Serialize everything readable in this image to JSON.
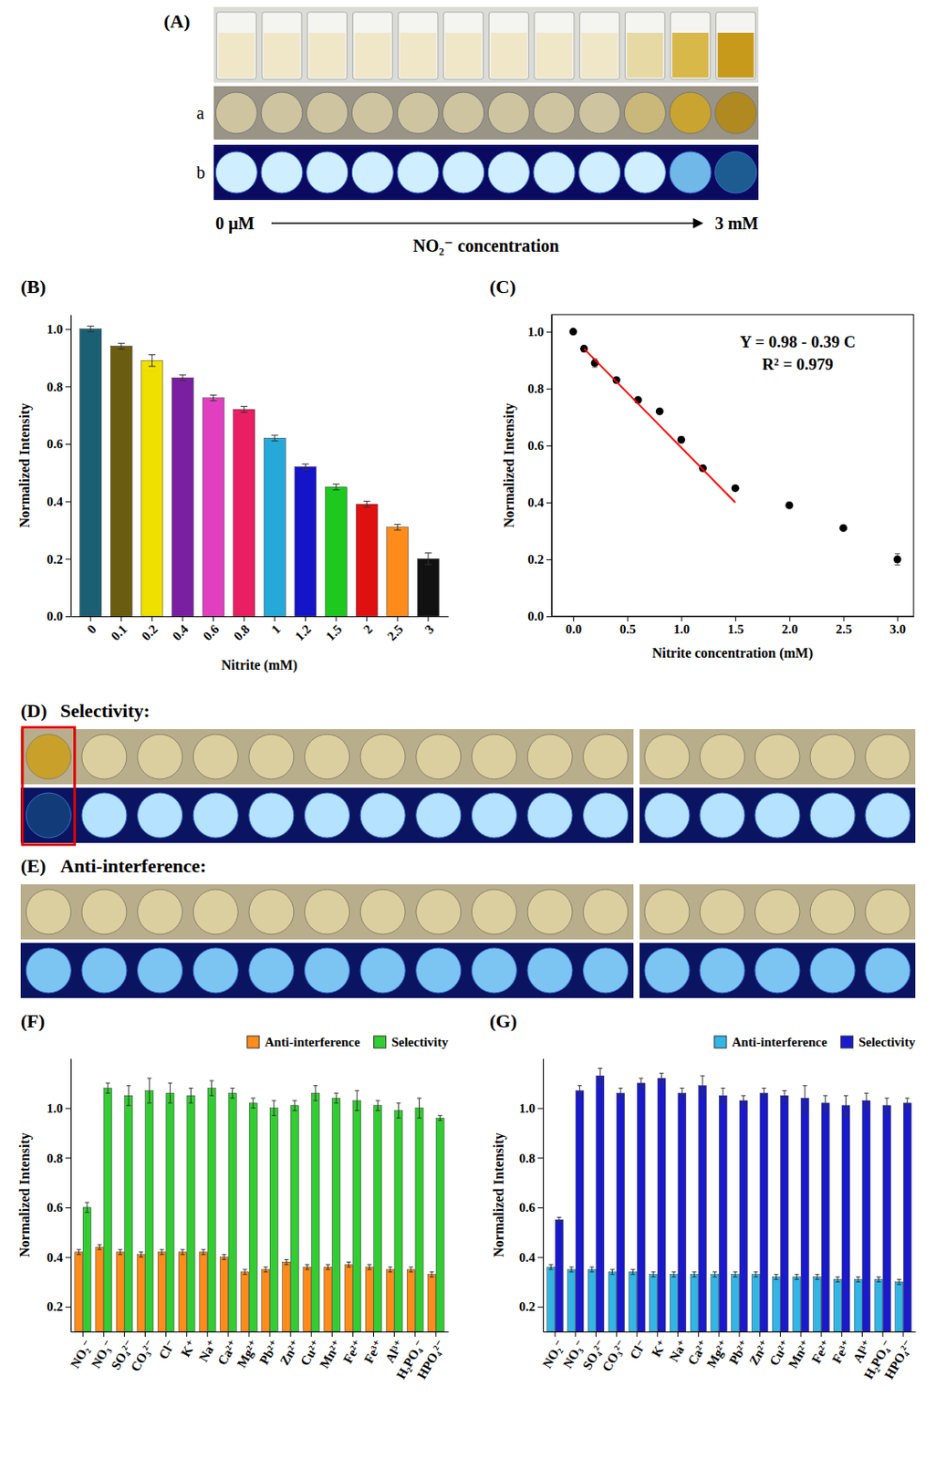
{
  "figure": {
    "panel_a": {
      "label": "(A)",
      "rows": [
        "a",
        "b"
      ],
      "x_start": "0 μM",
      "x_end": "3 mM",
      "x_title": "NO₂⁻ concentration"
    },
    "panel_d": {
      "label": "(D)",
      "title": "Selectivity:"
    },
    "panel_e": {
      "label": "(E)",
      "title": "Anti-interference:"
    }
  },
  "chart_data": [
    {
      "type": "bar",
      "title": "(B)",
      "x_label": "Nitrite (mM)",
      "y_label": "Normalized Intensity",
      "categories": [
        "0",
        "0.1",
        "0.2",
        "0.4",
        "0.6",
        "0.8",
        "1",
        "1.2",
        "1.5",
        "2",
        "2.5",
        "3"
      ],
      "values": [
        1.0,
        0.94,
        0.89,
        0.83,
        0.76,
        0.72,
        0.62,
        0.52,
        0.45,
        0.39,
        0.31,
        0.2
      ],
      "errors": [
        0.01,
        0.01,
        0.02,
        0.01,
        0.01,
        0.01,
        0.01,
        0.01,
        0.01,
        0.01,
        0.01,
        0.02
      ],
      "colors": [
        "#1a5f73",
        "#6b5d10",
        "#f0e000",
        "#7b1fa2",
        "#e040c0",
        "#e91e63",
        "#26a9d9",
        "#1414c8",
        "#1ec81e",
        "#e01010",
        "#ff8c1a",
        "#111111"
      ],
      "ylim": [
        0,
        1.05
      ],
      "yticks": [
        {
          "value": 0,
          "label": "0.0"
        },
        0.2,
        0.4,
        0.6,
        0.8,
        {
          "value": 1,
          "label": "1.0"
        }
      ]
    },
    {
      "type": "scatter",
      "title": "(C)",
      "x_label": "Nitrite concentration (mM)",
      "y_label": "Normalized Intensity",
      "x": [
        0,
        0.1,
        0.2,
        0.4,
        0.6,
        0.8,
        1.0,
        1.2,
        1.5,
        2.0,
        2.5,
        3.0
      ],
      "series": [
        {
          "type": "scatter",
          "color": "#000000",
          "marker": "circle",
          "values": [
            1.0,
            0.94,
            0.89,
            0.83,
            0.76,
            0.72,
            0.62,
            0.52,
            0.45,
            0.39,
            0.31,
            0.2
          ],
          "errors": [
            0.005,
            0.01,
            0.015,
            0.005,
            0.005,
            0.005,
            0.01,
            0.005,
            0.005,
            0.005,
            0.005,
            0.02
          ]
        },
        {
          "type": "line",
          "color": "#ff0000",
          "line_style": "solid",
          "x": [
            0.1,
            1.5
          ],
          "values": [
            0.94,
            0.4
          ]
        }
      ],
      "annotations": [
        "Y = 0.98 - 0.39 C",
        "R² = 0.979"
      ],
      "xlim": [
        -0.2,
        3.15
      ],
      "xticks": [
        {
          "value": 0,
          "label": "0.0"
        },
        0.5,
        {
          "value": 1,
          "label": "1.0"
        },
        1.5,
        {
          "value": 2,
          "label": "2.0"
        },
        2.5,
        {
          "value": 3,
          "label": "3.0"
        }
      ],
      "ylim": [
        0,
        1.06
      ],
      "yticks": [
        {
          "value": 0,
          "label": "0.0"
        },
        0.2,
        0.4,
        0.6,
        0.8,
        {
          "value": 1,
          "label": "1.0"
        }
      ]
    },
    {
      "type": "bar",
      "title": "(F)",
      "y_label": "Normalized Intensity",
      "legend": "top",
      "categories": [
        "NO₂⁻",
        "NO₃⁻",
        "SO₄²⁻",
        "CO₃²⁻",
        "Cl⁻",
        "K⁺",
        "Na⁺",
        "Ca²⁺",
        "Mg²⁺",
        "Pb²⁺",
        "Zn²⁺",
        "Cu²⁺",
        "Mn²⁺",
        "Fe²⁺",
        "Fe³⁺",
        "Al³⁺",
        "H₂PO₄⁻",
        "HPO₄²⁻"
      ],
      "series": [
        {
          "name": "Anti-interference",
          "color": "#ff8c1a",
          "values": [
            0.42,
            0.44,
            0.42,
            0.41,
            0.42,
            0.42,
            0.42,
            0.4,
            0.34,
            0.35,
            0.38,
            0.36,
            0.36,
            0.37,
            0.36,
            0.35,
            0.35,
            0.33
          ],
          "errors": [
            0.01,
            0.01,
            0.01,
            0.01,
            0.01,
            0.01,
            0.01,
            0.01,
            0.01,
            0.01,
            0.01,
            0.01,
            0.01,
            0.01,
            0.01,
            0.01,
            0.01,
            0.01
          ]
        },
        {
          "name": "Selectivity",
          "color": "#33cc33",
          "values": [
            0.6,
            1.08,
            1.05,
            1.07,
            1.06,
            1.05,
            1.08,
            1.06,
            1.02,
            1.0,
            1.01,
            1.06,
            1.04,
            1.03,
            1.01,
            0.99,
            1.0,
            0.96
          ],
          "errors": [
            0.02,
            0.02,
            0.04,
            0.05,
            0.04,
            0.03,
            0.03,
            0.02,
            0.02,
            0.03,
            0.02,
            0.03,
            0.02,
            0.04,
            0.02,
            0.03,
            0.04,
            0.01
          ]
        }
      ],
      "ylim": [
        0.1,
        1.2
      ],
      "yticks": [
        0.2,
        0.4,
        0.6,
        0.8,
        {
          "value": 1,
          "label": "1.0"
        }
      ]
    },
    {
      "type": "bar",
      "title": "(G)",
      "y_label": "Normalized Intensity",
      "legend": "top",
      "categories": [
        "NO₂⁻",
        "NO₃⁻",
        "SO₄²⁻",
        "CO₃²⁻",
        "Cl⁻",
        "K⁺",
        "Na⁺",
        "Ca²⁺",
        "Mg²⁺",
        "Pb²⁺",
        "Zn²⁺",
        "Cu²⁺",
        "Mn²⁺",
        "Fe²⁺",
        "Fe³⁺",
        "Al³⁺",
        "H₂PO₄⁻",
        "HPO₄²⁻"
      ],
      "series": [
        {
          "name": "Anti-interference",
          "color": "#33b5e5",
          "values": [
            0.36,
            0.35,
            0.35,
            0.34,
            0.34,
            0.33,
            0.33,
            0.33,
            0.33,
            0.33,
            0.33,
            0.32,
            0.32,
            0.32,
            0.31,
            0.31,
            0.31,
            0.3
          ],
          "errors": [
            0.01,
            0.01,
            0.01,
            0.01,
            0.01,
            0.01,
            0.01,
            0.01,
            0.01,
            0.01,
            0.01,
            0.01,
            0.01,
            0.01,
            0.01,
            0.01,
            0.01,
            0.01
          ]
        },
        {
          "name": "Selectivity",
          "color": "#1a1acc",
          "values": [
            0.55,
            1.07,
            1.13,
            1.06,
            1.1,
            1.12,
            1.06,
            1.09,
            1.05,
            1.03,
            1.06,
            1.05,
            1.04,
            1.02,
            1.01,
            1.03,
            1.01,
            1.02
          ],
          "errors": [
            0.01,
            0.02,
            0.03,
            0.02,
            0.02,
            0.02,
            0.02,
            0.04,
            0.03,
            0.02,
            0.02,
            0.02,
            0.05,
            0.03,
            0.04,
            0.03,
            0.03,
            0.02
          ]
        }
      ],
      "ylim": [
        0.1,
        1.2
      ],
      "yticks": [
        0.2,
        0.4,
        0.6,
        0.8,
        {
          "value": 1,
          "label": "1.0"
        }
      ]
    }
  ]
}
